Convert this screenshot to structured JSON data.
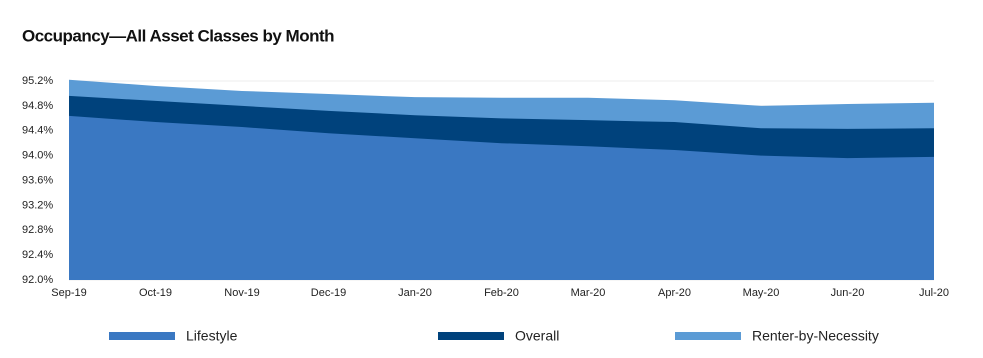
{
  "chart_data": {
    "type": "area",
    "title": "Occupancy—All Asset Classes by Month",
    "categories": [
      "Sep-19",
      "Oct-19",
      "Nov-19",
      "Dec-19",
      "Jan-20",
      "Feb-20",
      "Mar-20",
      "Apr-20",
      "May-20",
      "Jun-20",
      "Jul-20"
    ],
    "series": [
      {
        "name": "Lifestyle",
        "color": "#3a78c2",
        "values": [
          94.64,
          94.54,
          94.46,
          94.36,
          94.28,
          94.2,
          94.15,
          94.09,
          94.0,
          93.96,
          93.98
        ]
      },
      {
        "name": "Overall",
        "color": "#00427c",
        "values": [
          94.96,
          94.88,
          94.8,
          94.72,
          94.65,
          94.6,
          94.57,
          94.54,
          94.44,
          94.43,
          94.44
        ]
      },
      {
        "name": "Renter-by-Necessity",
        "color": "#5b9bd5",
        "values": [
          95.22,
          95.12,
          95.04,
          94.99,
          94.94,
          94.93,
          94.93,
          94.89,
          94.8,
          94.83,
          94.85
        ]
      }
    ],
    "ylim": [
      92.0,
      95.2
    ],
    "yticks": [
      {
        "value": 92.0,
        "label": "92.0%"
      },
      {
        "value": 92.4,
        "label": "92.4%"
      },
      {
        "value": 92.8,
        "label": "92.8%"
      },
      {
        "value": 93.2,
        "label": "93.2%"
      },
      {
        "value": 93.6,
        "label": "93.6%"
      },
      {
        "value": 94.0,
        "label": "94.0%"
      },
      {
        "value": 94.4,
        "label": "94.4%"
      },
      {
        "value": 94.8,
        "label": "94.8%"
      },
      {
        "value": 95.2,
        "label": "95.2%"
      }
    ],
    "grid": true,
    "legend": "bottom"
  }
}
